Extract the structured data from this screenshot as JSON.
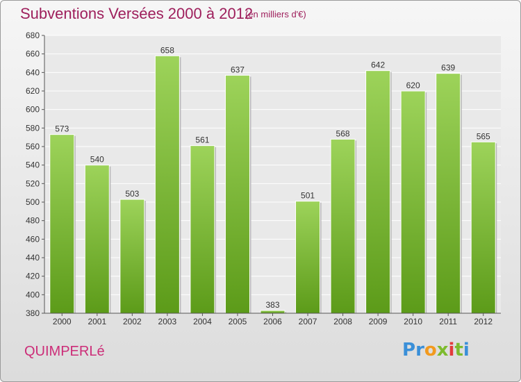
{
  "header": {
    "title": "Subventions Versées 2000 à 2012",
    "unit": "(en milliers d'€)"
  },
  "footer": {
    "commune": "QUIMPERLé",
    "brand": [
      "P",
      "r",
      "o",
      "x",
      "i",
      "t",
      "i"
    ],
    "brand_colors": [
      "#3a8fd8",
      "#3a8fd8",
      "#f29a1e",
      "#7dbb2e",
      "#e23b3b",
      "#7dbb2e",
      "#3a8fd8"
    ]
  },
  "colors": {
    "bar_top": "#9dd35a",
    "bar_bottom": "#5c9b19",
    "title": "#9e1f5c",
    "commune": "#cc2d78"
  },
  "chart_data": {
    "type": "bar",
    "title": "Subventions Versées 2000 à 2012",
    "subtitle": "(en milliers d'€)",
    "xlabel": "",
    "ylabel": "",
    "categories": [
      "2000",
      "2001",
      "2002",
      "2003",
      "2004",
      "2005",
      "2006",
      "2007",
      "2008",
      "2009",
      "2010",
      "2011",
      "2012"
    ],
    "values": [
      573,
      540,
      503,
      658,
      561,
      637,
      383,
      501,
      568,
      642,
      620,
      639,
      565
    ],
    "ylim": [
      380,
      680
    ],
    "yticks": [
      380,
      400,
      420,
      440,
      460,
      480,
      500,
      520,
      540,
      560,
      580,
      600,
      620,
      640,
      660,
      680
    ],
    "grid": true,
    "legend": "none"
  }
}
